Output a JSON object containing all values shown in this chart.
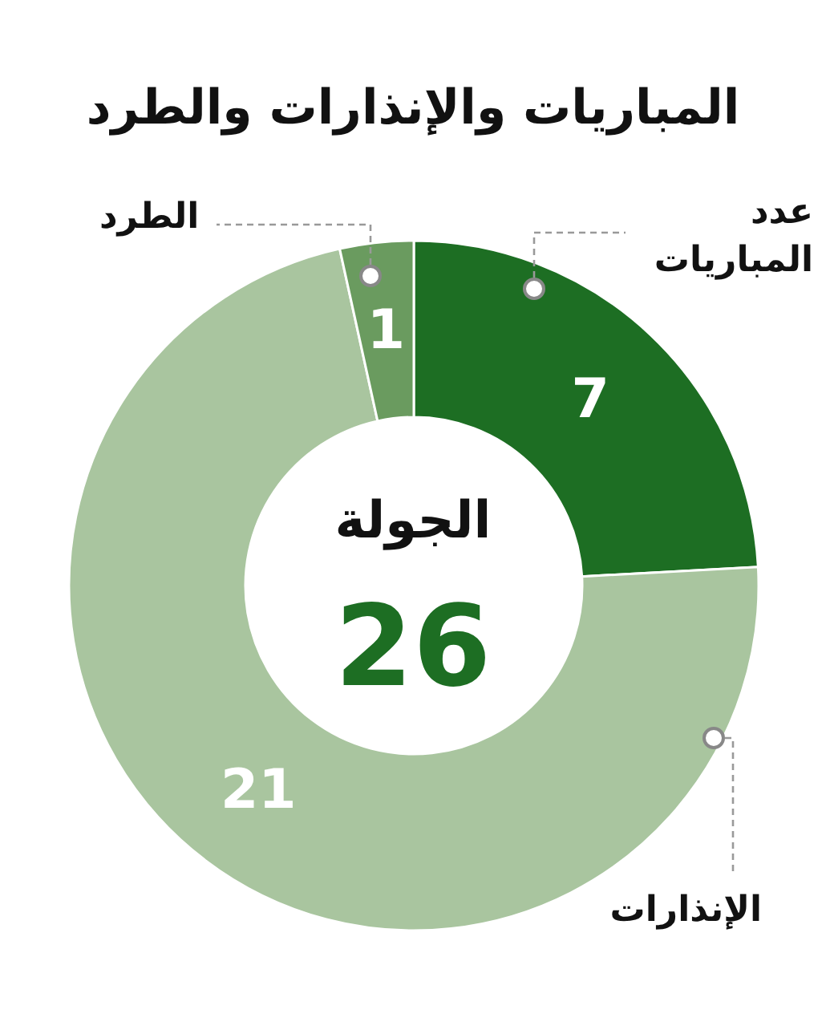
{
  "chart_data": {
    "type": "donut",
    "title": "المباريات والإنذارات والطرد",
    "categories": [
      "عدد المباريات",
      "الإنذارات",
      "الطرد"
    ],
    "values": [
      7,
      21,
      1
    ],
    "colors": [
      "#1d6e23",
      "#a9c59f",
      "#6a9b5f"
    ],
    "data_labels": true,
    "annotations": [
      "الجولة",
      "26"
    ]
  }
}
